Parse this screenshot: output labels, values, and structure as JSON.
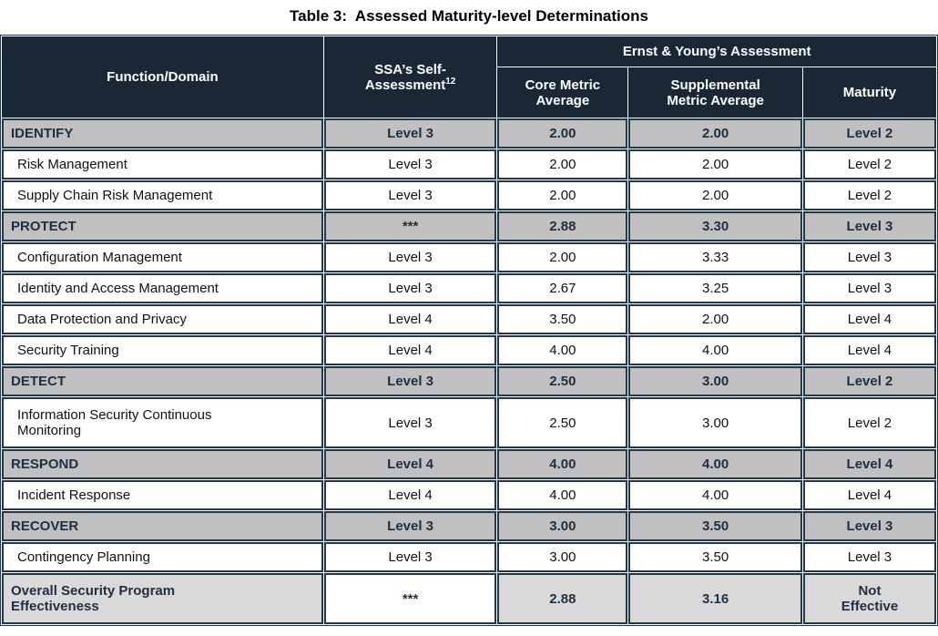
{
  "page_title": "Table 3:  Assessed Maturity-level Determinations",
  "colors": {
    "header_bg": "#1a2836",
    "header_text": "#ffffff",
    "section_row_bg": "#c0c0c0",
    "overall_row_bg": "#d9d9d9",
    "section_text": "#1e2f42",
    "cell_border": "#24364a"
  },
  "header": {
    "function_domain": "Function/Domain",
    "ssa_line1": "SSA’s Self-",
    "ssa_line2": "Assessment",
    "ssa_footnote": "12",
    "ey_group": "Ernst & Young’s Assessment",
    "core_metric": "Core Metric\nAverage",
    "supplemental_metric": "Supplemental\nMetric Average",
    "maturity": "Maturity"
  },
  "rows": [
    {
      "function": "IDENTIFY",
      "ssa": "Level 3",
      "core": "2.00",
      "supplemental": "2.00",
      "maturity": "Level 2"
    },
    {
      "function": "Risk Management",
      "ssa": "Level 3",
      "core": "2.00",
      "supplemental": "2.00",
      "maturity": "Level 2"
    },
    {
      "function": "Supply Chain Risk Management",
      "ssa": "Level 3",
      "core": "2.00",
      "supplemental": "2.00",
      "maturity": "Level 2"
    },
    {
      "function": "PROTECT",
      "ssa": "***",
      "core": "2.88",
      "supplemental": "3.30",
      "maturity": "Level 3"
    },
    {
      "function": "Configuration Management",
      "ssa": "Level 3",
      "core": "2.00",
      "supplemental": "3.33",
      "maturity": "Level 3"
    },
    {
      "function": "Identity and Access Management",
      "ssa": "Level 3",
      "core": "2.67",
      "supplemental": "3.25",
      "maturity": "Level 3"
    },
    {
      "function": "Data Protection and Privacy",
      "ssa": "Level 4",
      "core": "3.50",
      "supplemental": "2.00",
      "maturity": "Level 4"
    },
    {
      "function": "Security Training",
      "ssa": "Level 4",
      "core": "4.00",
      "supplemental": "4.00",
      "maturity": "Level 4"
    },
    {
      "function": "DETECT",
      "ssa": "Level 3",
      "core": "2.50",
      "supplemental": "3.00",
      "maturity": "Level 2"
    },
    {
      "function": "Information Security Continuous\nMonitoring",
      "ssa": "Level 3",
      "core": "2.50",
      "supplemental": "3.00",
      "maturity": "Level 2"
    },
    {
      "function": "RESPOND",
      "ssa": "Level 4",
      "core": "4.00",
      "supplemental": "4.00",
      "maturity": "Level 4"
    },
    {
      "function": "Incident Response",
      "ssa": "Level 4",
      "core": "4.00",
      "supplemental": "4.00",
      "maturity": "Level 4"
    },
    {
      "function": "RECOVER",
      "ssa": "Level 3",
      "core": "3.00",
      "supplemental": "3.50",
      "maturity": "Level 3"
    },
    {
      "function": "Contingency Planning",
      "ssa": "Level 3",
      "core": "3.00",
      "supplemental": "3.50",
      "maturity": "Level 3"
    },
    {
      "function": "Overall Security Program\nEffectiveness",
      "ssa": "***",
      "core": "2.88",
      "supplemental": "3.16",
      "maturity": "Not\nEffective"
    }
  ]
}
